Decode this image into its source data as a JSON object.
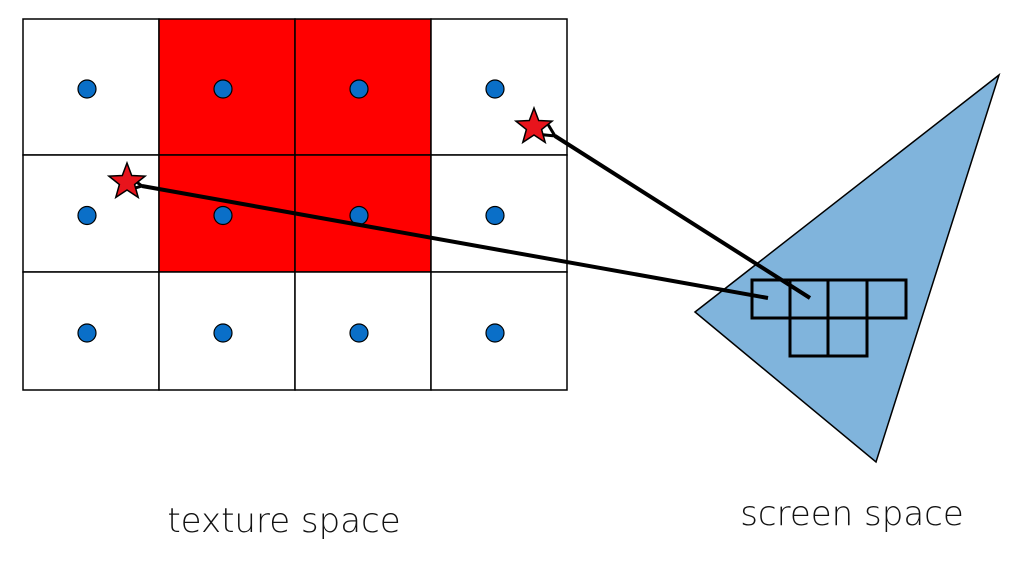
{
  "labels": {
    "texture_space": "texture space",
    "screen_space": "screen space"
  },
  "texture_grid": {
    "columns": 4,
    "rows": 3,
    "highlighted_cells": [
      {
        "row": 0,
        "col": 1
      },
      {
        "row": 0,
        "col": 2
      },
      {
        "row": 1,
        "col": 1
      },
      {
        "row": 1,
        "col": 2
      }
    ]
  },
  "screen_pixel_grid": {
    "top_row_cells": 4,
    "bottom_row_cells": 2
  },
  "colors": {
    "highlight_red": "#ff0000",
    "texel_dot_blue": "#0a6fc8",
    "star_red": "#e8141c",
    "triangle_blue": "#80b4dc",
    "stroke": "#000000"
  },
  "icons": {
    "texel_center": "circle",
    "sample_point": "star",
    "mapping_arrow": "arrow"
  }
}
